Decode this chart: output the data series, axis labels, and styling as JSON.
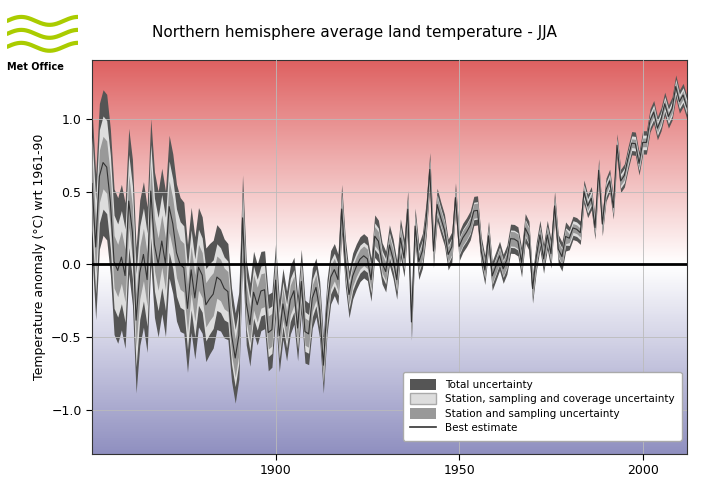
{
  "title": "Northern hemisphere average land temperature - JJA",
  "ylabel": "Temperature anomaly (°C) wrt 1961-90",
  "xlim": [
    1850,
    2012
  ],
  "ylim": [
    -1.3,
    1.4
  ],
  "yticks": [
    -1.0,
    -0.5,
    0.0,
    0.5,
    1.0
  ],
  "xticks": [
    1900,
    1950,
    2000
  ],
  "grid_color": "#bbbbbb",
  "legend_labels": [
    "Total uncertainty",
    "Station, sampling and coverage uncertainty",
    "Station and sampling uncertainty",
    "Best estimate"
  ],
  "colors": {
    "total_unc": "#555555",
    "station_cov_unc": "#dddddd",
    "station_unc": "#999999",
    "best_estimate": "#333333"
  },
  "warm_top": "#e06060",
  "warm_mid": "#f5c0c0",
  "cool_mid": "#c0c0e0",
  "cool_bot": "#9090c0"
}
